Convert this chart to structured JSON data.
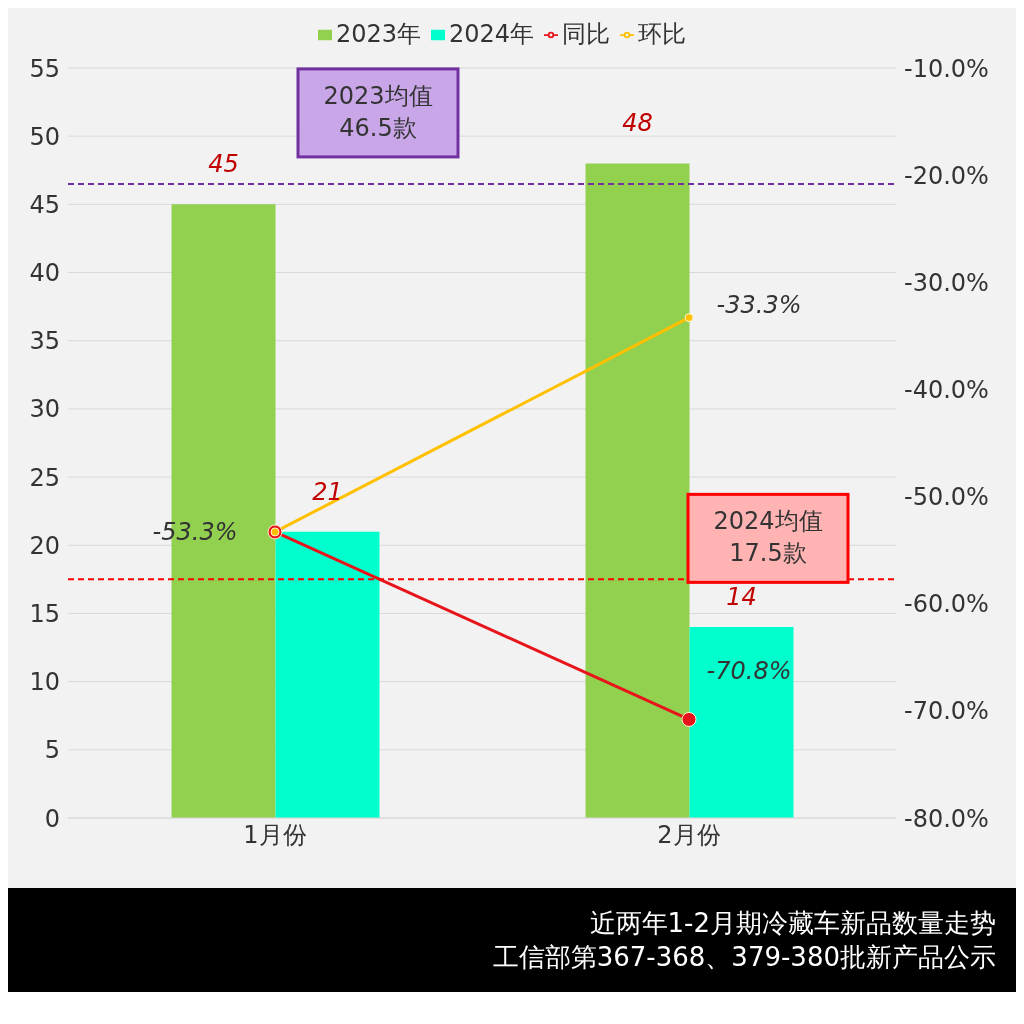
{
  "chart_data": {
    "type": "bar",
    "categories": [
      "1月份",
      "2月份"
    ],
    "series": [
      {
        "name": "2023年",
        "color": "#92d050",
        "values": [
          45,
          48
        ],
        "value_labels": [
          "45",
          "48"
        ]
      },
      {
        "name": "2024年",
        "color": "#00ffcc",
        "values": [
          21,
          14
        ],
        "value_labels": [
          "21",
          "14"
        ]
      },
      {
        "name": "同比",
        "type": "line",
        "axis": "y2",
        "color": "#e8141b",
        "values": [
          -53.3,
          -70.8
        ],
        "value_labels": [
          null,
          "-70.8%"
        ]
      },
      {
        "name": "环比",
        "type": "line",
        "axis": "y2",
        "color": "#ffc000",
        "values": [
          -53.3,
          -33.3
        ],
        "value_labels": [
          "-53.3%",
          "-33.3%"
        ]
      }
    ],
    "ylim": [
      0,
      55
    ],
    "yticks": [
      0,
      5,
      10,
      15,
      20,
      25,
      30,
      35,
      40,
      45,
      50,
      55
    ],
    "y2lim": [
      -80,
      -10
    ],
    "y2ticks": [
      {
        "value": -80,
        "label": "-80.0%"
      },
      {
        "value": -70,
        "label": "-70.0%"
      },
      {
        "value": -60,
        "label": "-60.0%"
      },
      {
        "value": -50,
        "label": "-50.0%"
      },
      {
        "value": -40,
        "label": "-40.0%"
      },
      {
        "value": -30,
        "label": "-30.0%"
      },
      {
        "value": -20,
        "label": "-20.0%"
      },
      {
        "value": -10,
        "label": "-10.0%"
      }
    ],
    "ref_lines": [
      {
        "axis": "y",
        "value": 46.5,
        "label": "2023均值\n46.5款",
        "color": "#7030a0",
        "line_style": "dashed"
      },
      {
        "axis": "y",
        "value": 17.5,
        "label": "2024均值\n17.5款",
        "color": "#ff0000",
        "line_style": "dashed"
      }
    ],
    "annotations": [
      "近两年1-2月期冷藏车新品数量走势",
      "工信部第367-368、379-380批新产品公示"
    ],
    "grid": "y",
    "legend": "top",
    "marker": "circle"
  }
}
